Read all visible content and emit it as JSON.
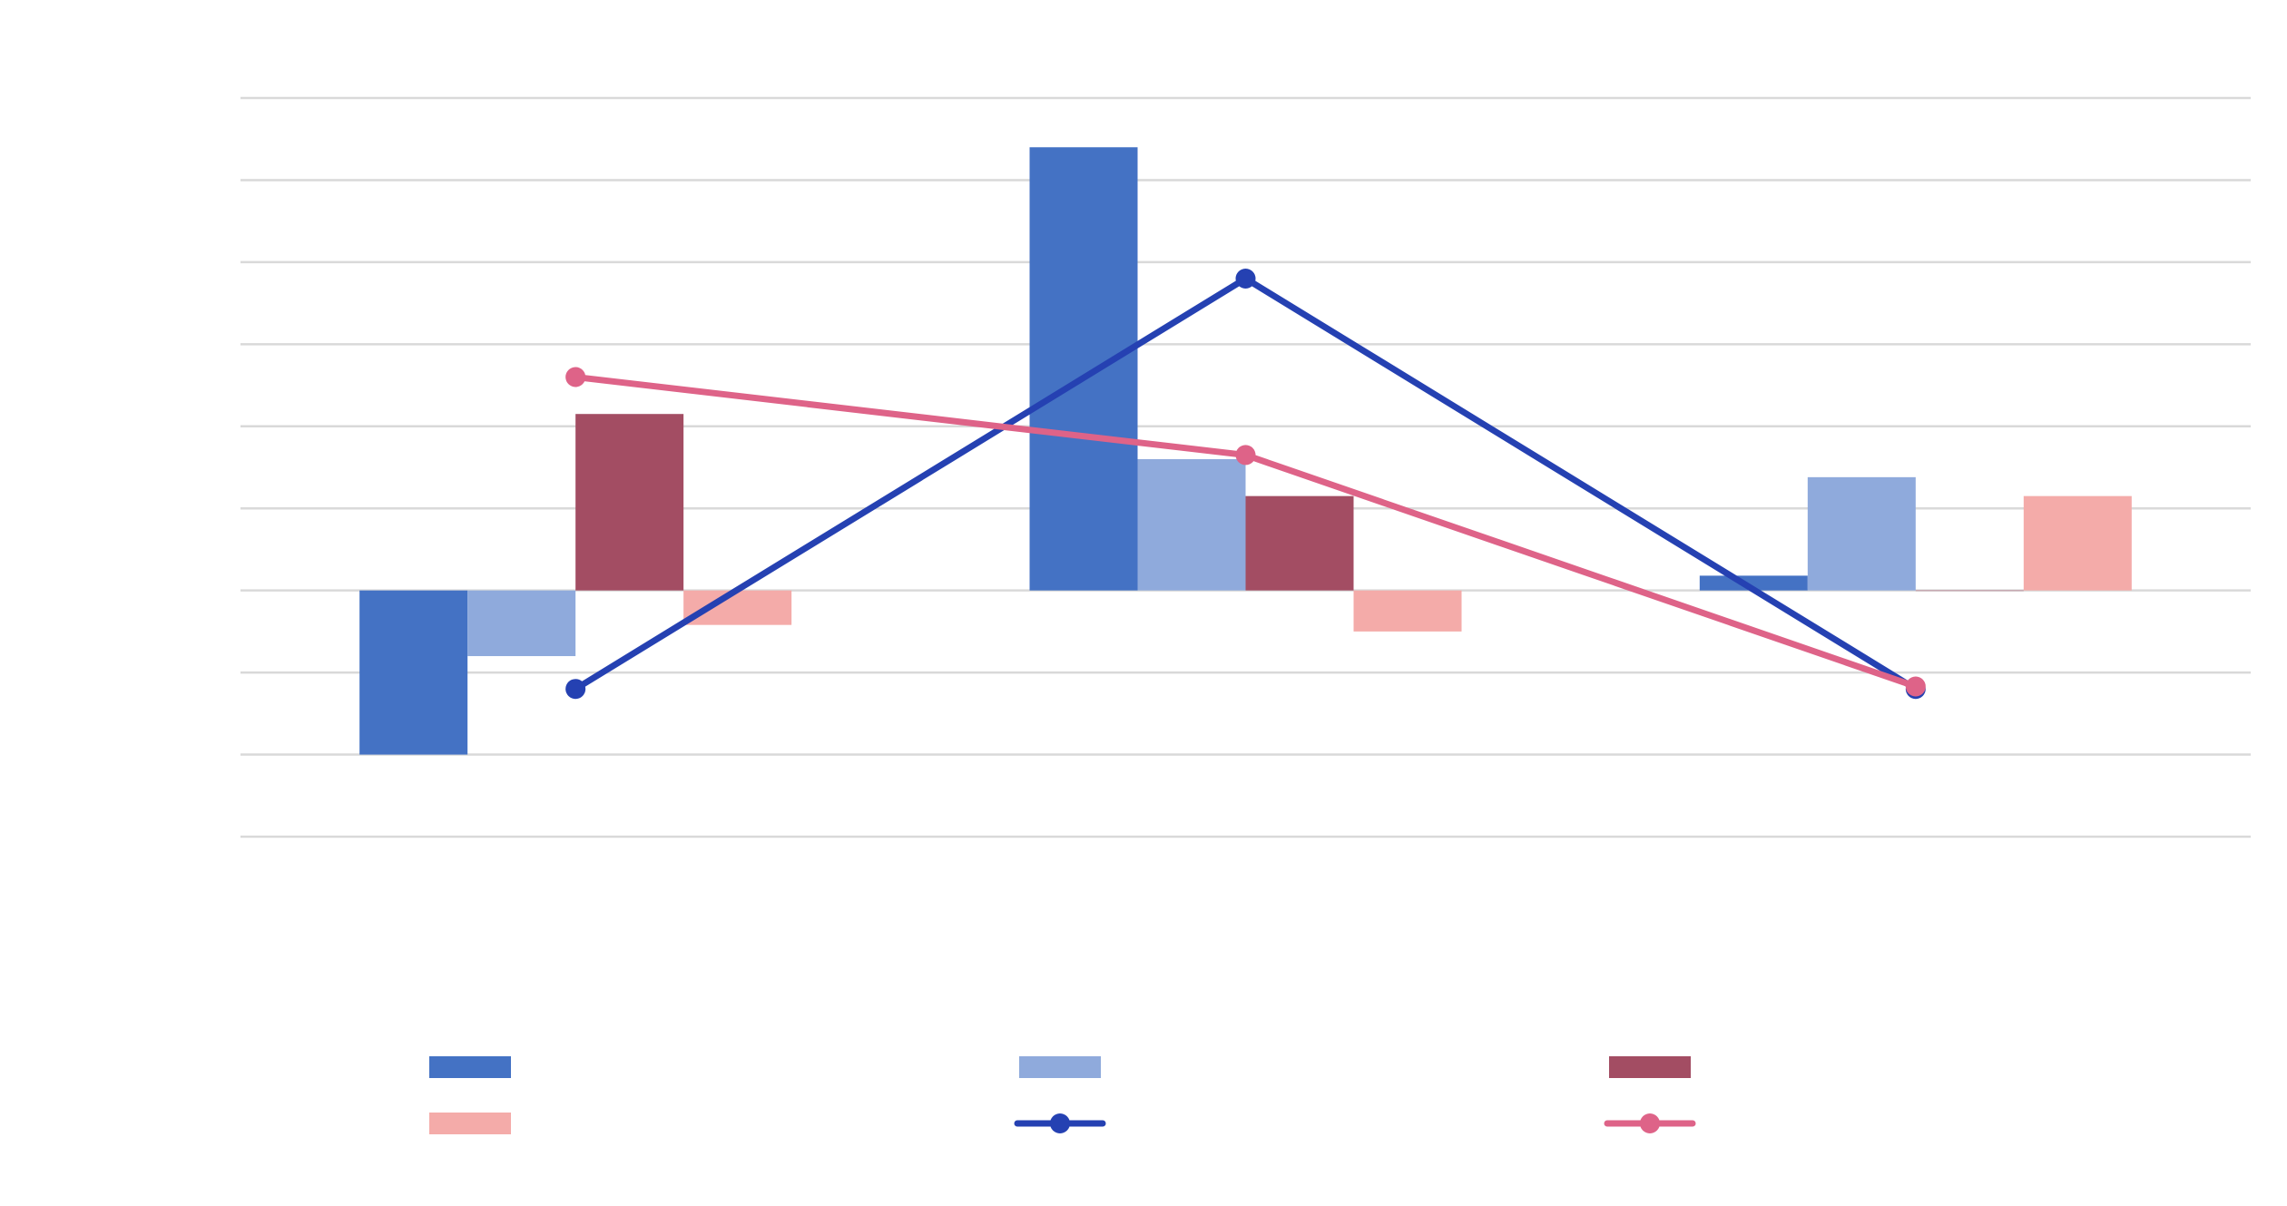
{
  "chart_data": {
    "type": "bar",
    "title": "",
    "xlabel": "",
    "ylabel": "",
    "categories": [
      "",
      "",
      ""
    ],
    "ylim": [
      -3,
      6
    ],
    "grid": true,
    "legend_placement": "bottom",
    "series": [
      {
        "type": "bar",
        "color": "#4472C4",
        "values": [
          -2.0,
          5.4,
          0.18
        ]
      },
      {
        "type": "bar",
        "color": "#8FAADC",
        "values": [
          -0.8,
          1.6,
          1.38
        ]
      },
      {
        "type": "bar",
        "color": "#A34D63",
        "values": [
          2.15,
          1.15,
          0.0
        ]
      },
      {
        "type": "bar",
        "color": "#F4ABA9",
        "values": [
          -0.42,
          -0.5,
          1.15
        ]
      },
      {
        "type": "line",
        "color": "#2541B2",
        "values": [
          -1.2,
          3.8,
          -1.2
        ]
      },
      {
        "type": "line",
        "color": "#DE6388",
        "values": [
          2.6,
          1.65,
          -1.17
        ]
      }
    ]
  }
}
